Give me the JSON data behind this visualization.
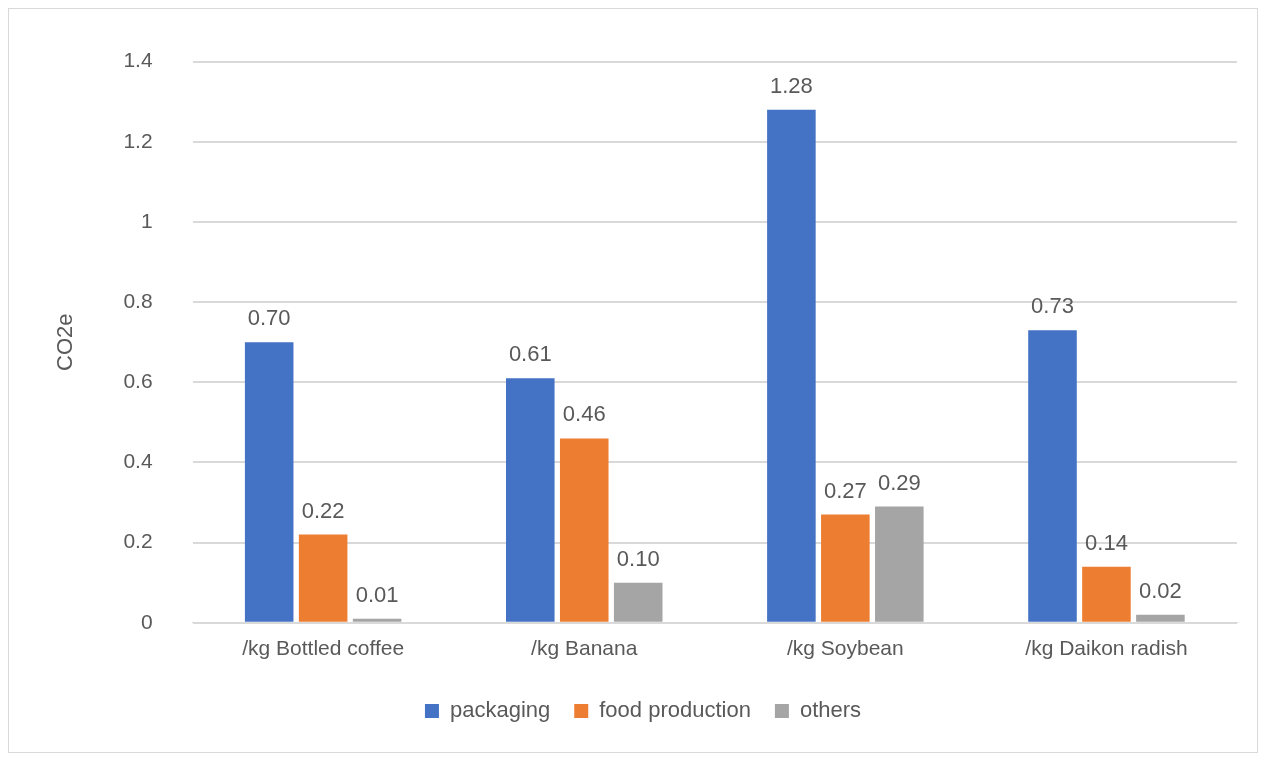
{
  "chart_data": {
    "type": "bar",
    "ylabel": "CO2e",
    "categories": [
      "/kg Bottled coffee",
      "/kg Banana",
      "/kg Soybean",
      "/kg Daikon radish"
    ],
    "series": [
      {
        "name": "packaging",
        "color": "#4472c4",
        "values": [
          0.7,
          0.61,
          1.28,
          0.73
        ],
        "value_labels": [
          "0.70",
          "0.61",
          "1.28",
          "0.73"
        ]
      },
      {
        "name": "food production",
        "color": "#ed7d31",
        "values": [
          0.22,
          0.46,
          0.27,
          0.14
        ],
        "value_labels": [
          "0.22",
          "0.46",
          "0.27",
          "0.14"
        ]
      },
      {
        "name": "others",
        "color": "#a5a5a5",
        "values": [
          0.01,
          0.1,
          0.29,
          0.02
        ],
        "value_labels": [
          "0.01",
          "0.10",
          "0.29",
          "0.02"
        ]
      }
    ],
    "ylim": [
      0,
      1.4
    ],
    "yticks": [
      0,
      0.2,
      0.4,
      0.6,
      0.8,
      1,
      1.2,
      1.4
    ],
    "grid": "y",
    "legend": "bottom"
  }
}
